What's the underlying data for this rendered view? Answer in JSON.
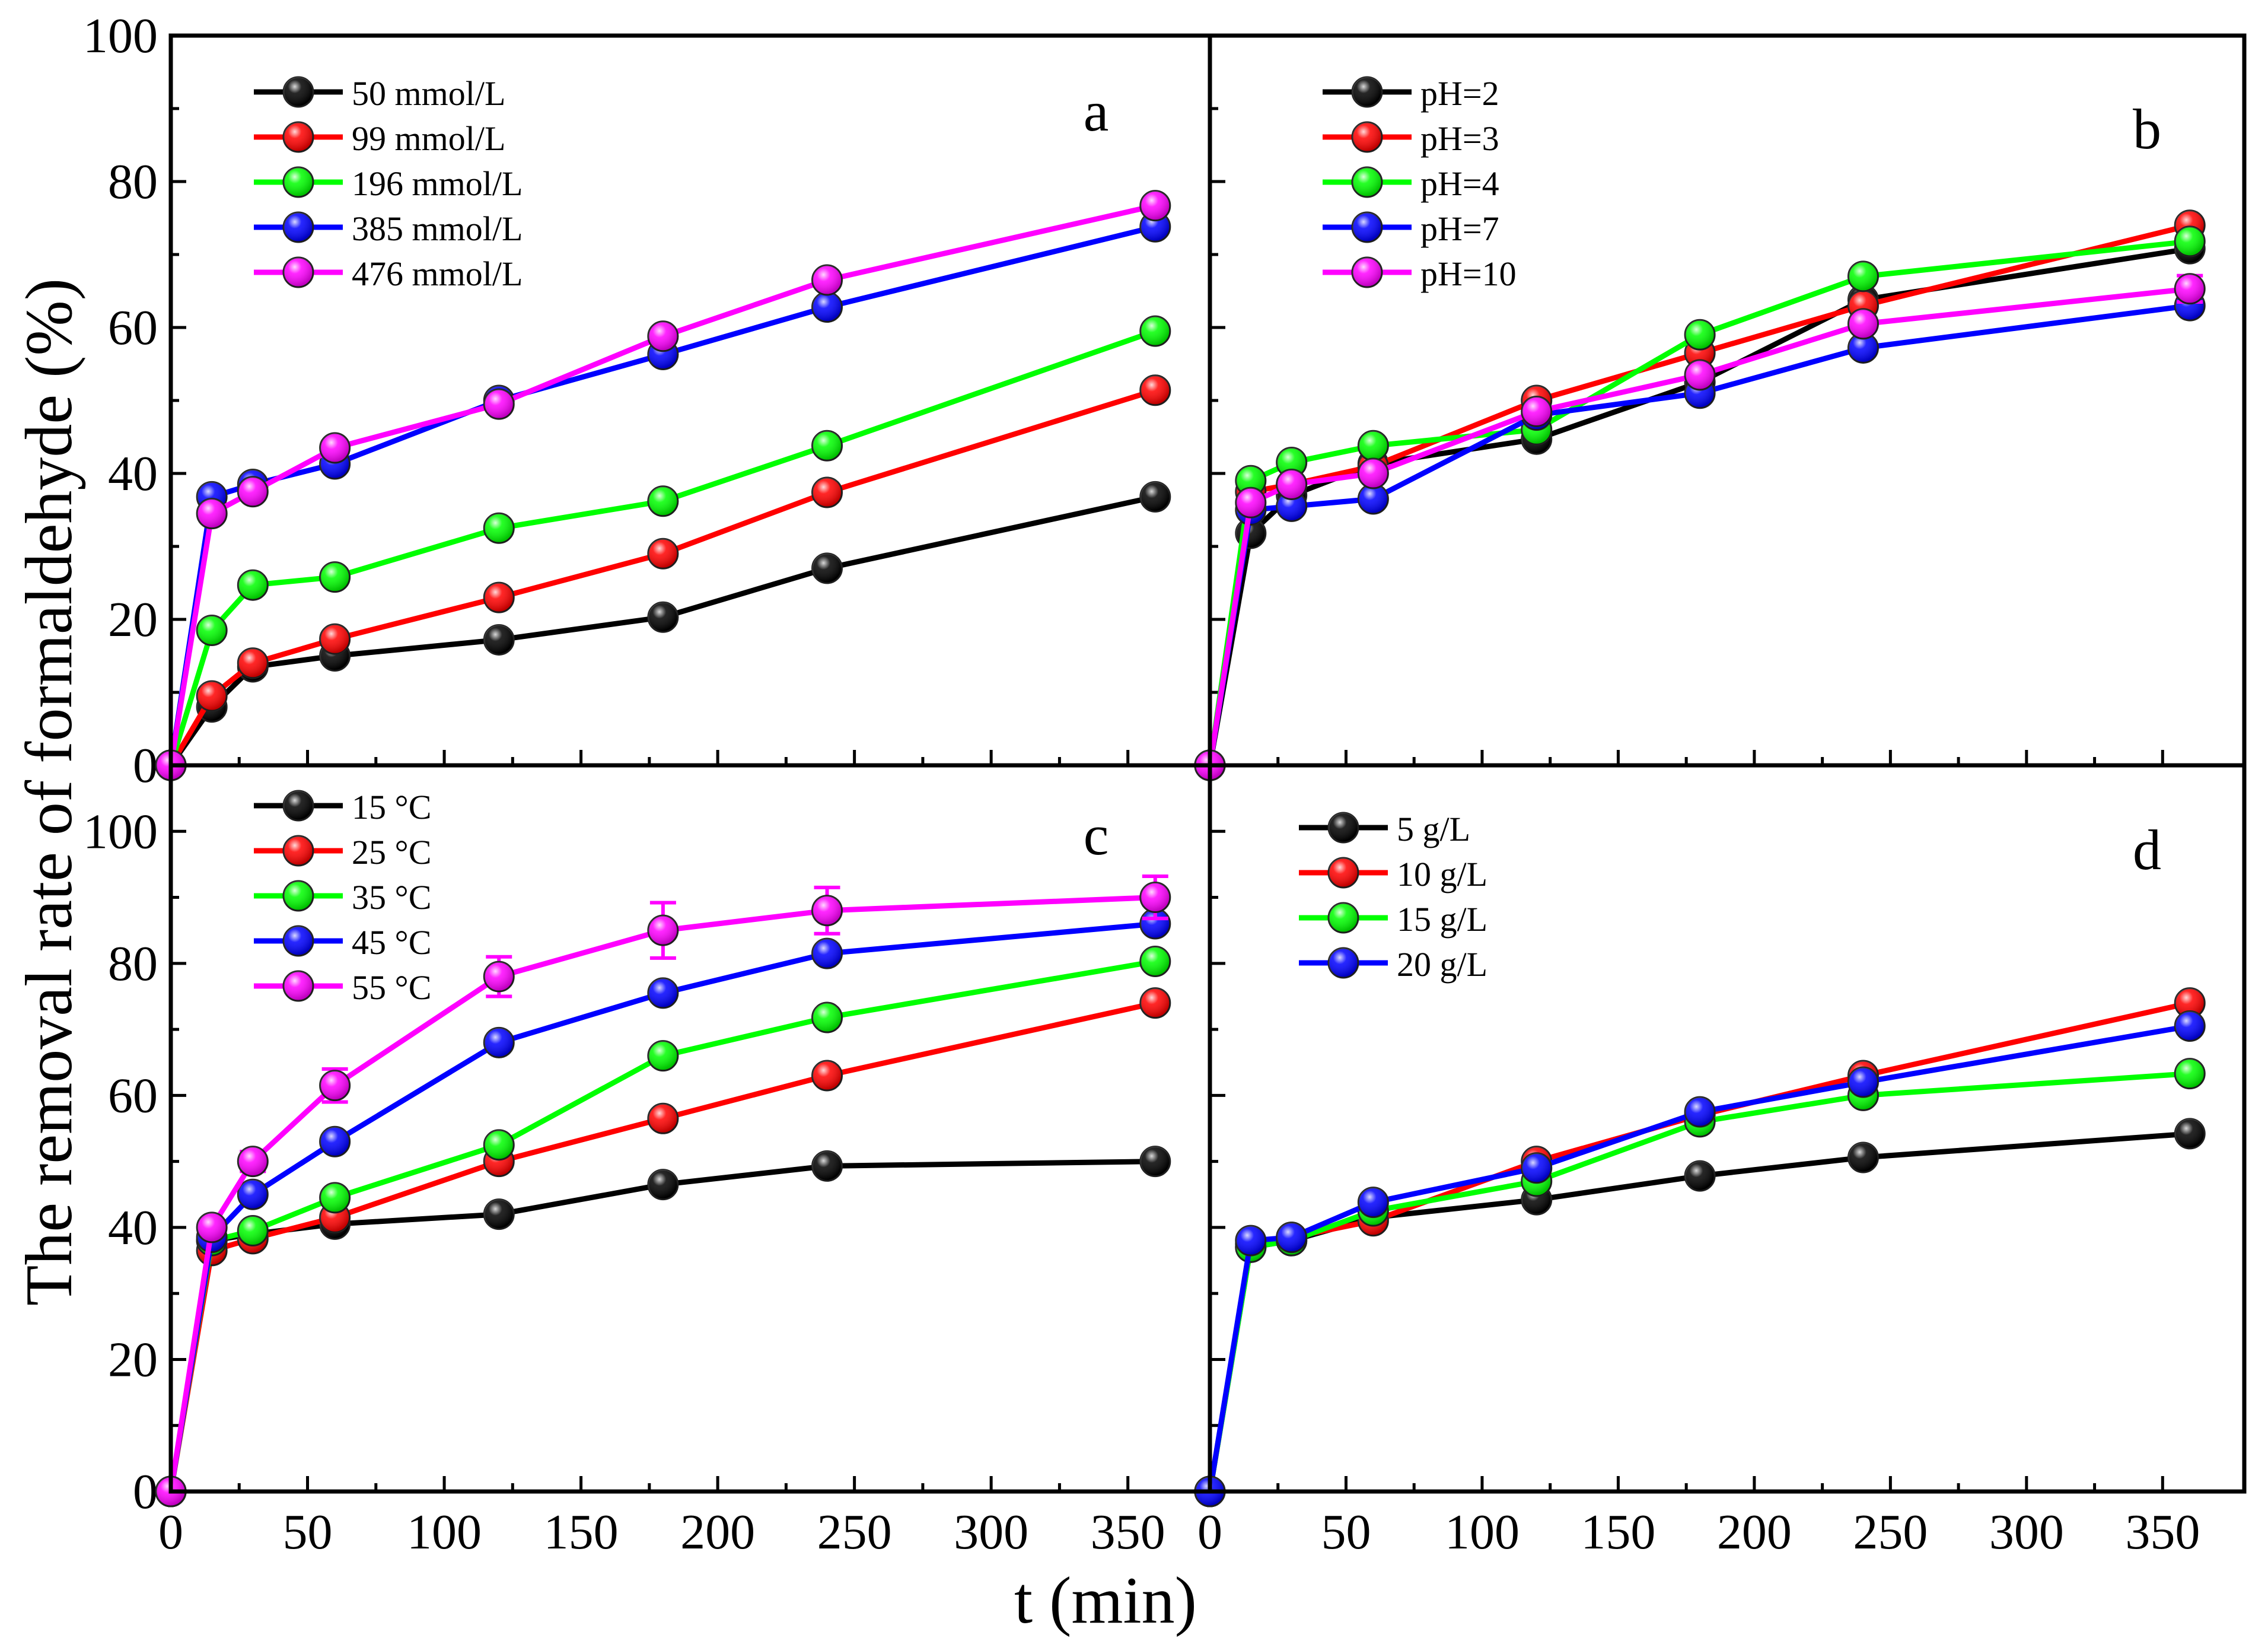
{
  "figure": {
    "ylabel": "The removal rate of formaldehyde (%)",
    "xlabel": "t (min)"
  },
  "chart_data": [
    {
      "type": "line",
      "panel_label": "a",
      "xlim": [
        0,
        380
      ],
      "ylim": [
        0,
        100
      ],
      "x_ticks": [
        0,
        50,
        100,
        150,
        200,
        250,
        300,
        350
      ],
      "y_ticks": [
        0,
        20,
        40,
        60,
        80,
        100
      ],
      "x_tick_labels": [
        "0",
        "50",
        "100",
        "150",
        "200",
        "250",
        "300",
        "350"
      ],
      "y_tick_labels": [
        "0",
        "20",
        "40",
        "60",
        "80",
        "100"
      ],
      "legend_position": "top-left",
      "x": [
        0,
        15,
        30,
        60,
        120,
        180,
        240,
        360
      ],
      "series": [
        {
          "name": "50 mmol/L",
          "color": "#000000",
          "values": [
            0,
            8,
            13.5,
            15,
            17.2,
            20.3,
            27,
            36.8
          ],
          "errors": [
            0,
            1,
            0.6,
            0.6,
            0.6,
            0.6,
            0.8,
            0.8
          ]
        },
        {
          "name": "99 mmol/L",
          "color": "#ff0000",
          "values": [
            0,
            9.5,
            14,
            17.3,
            23,
            29,
            37.4,
            51.4
          ],
          "errors": [
            0,
            1,
            0.6,
            0.6,
            0.6,
            0.6,
            0.6,
            0.6
          ]
        },
        {
          "name": "196 mmol/L",
          "color": "#00ff00",
          "values": [
            0,
            18.5,
            24.7,
            25.8,
            32.5,
            36.2,
            43.8,
            59.5
          ],
          "errors": [
            0,
            0.8,
            0.6,
            0.6,
            0.6,
            0.6,
            0.6,
            0.6
          ]
        },
        {
          "name": "385 mmol/L",
          "color": "#0000ff",
          "values": [
            0,
            36.8,
            38.5,
            41.3,
            50,
            56.3,
            62.8,
            73.8
          ],
          "errors": [
            0,
            0.6,
            0.6,
            0.6,
            0.6,
            0.6,
            0.6,
            0.6
          ]
        },
        {
          "name": "476 mmol/L",
          "color": "#ff00ff",
          "values": [
            0,
            34.5,
            37.5,
            43.5,
            49.5,
            58.8,
            66.5,
            76.7
          ],
          "errors": [
            0,
            0.6,
            0.6,
            0.6,
            0.6,
            0.8,
            0.8,
            0.8
          ]
        }
      ]
    },
    {
      "type": "line",
      "panel_label": "b",
      "xlim": [
        0,
        380
      ],
      "ylim": [
        0,
        100
      ],
      "x_ticks": [
        0,
        50,
        100,
        150,
        200,
        250,
        300,
        350
      ],
      "y_ticks": [
        0,
        20,
        40,
        60,
        80,
        100
      ],
      "legend_position": "top-left",
      "x": [
        0,
        15,
        30,
        60,
        120,
        180,
        240,
        360
      ],
      "series": [
        {
          "name": "pH=2",
          "color": "#000000",
          "values": [
            0,
            31.8,
            37,
            41.3,
            44.7,
            52.5,
            63.8,
            70.8
          ],
          "errors": [
            0,
            0.8,
            0.6,
            0.6,
            0.6,
            0.8,
            0.8,
            0.8
          ]
        },
        {
          "name": "pH=3",
          "color": "#ff0000",
          "values": [
            0,
            37.5,
            38.5,
            41,
            50,
            56.5,
            63,
            74
          ],
          "errors": [
            0,
            0.6,
            0.6,
            0.6,
            0.6,
            0.8,
            0.6,
            0.6
          ]
        },
        {
          "name": "pH=4",
          "color": "#00ff00",
          "values": [
            0,
            39,
            41.5,
            43.8,
            46,
            59,
            67,
            71.8
          ],
          "errors": [
            0,
            0.6,
            0.6,
            0.6,
            0.6,
            0.6,
            0.6,
            0.6
          ]
        },
        {
          "name": "pH=7",
          "color": "#0000ff",
          "values": [
            0,
            35,
            35.5,
            36.5,
            48,
            51,
            57.2,
            63
          ],
          "errors": [
            0,
            0.6,
            0.6,
            0.6,
            0.6,
            0.8,
            0.8,
            0.8
          ]
        },
        {
          "name": "pH=10",
          "color": "#ff00ff",
          "values": [
            0,
            36,
            38.5,
            40,
            48.5,
            53.5,
            60.5,
            65.3
          ],
          "errors": [
            0,
            0.6,
            0.6,
            0.6,
            0.6,
            0.8,
            0.8,
            1.8
          ]
        }
      ]
    },
    {
      "type": "line",
      "panel_label": "c",
      "xlim": [
        0,
        380
      ],
      "ylim": [
        0,
        110
      ],
      "x_ticks": [
        0,
        50,
        100,
        150,
        200,
        250,
        300,
        350
      ],
      "y_ticks": [
        0,
        20,
        40,
        60,
        80,
        100
      ],
      "legend_position": "top-left",
      "x": [
        0,
        15,
        30,
        60,
        120,
        180,
        240,
        360
      ],
      "series": [
        {
          "name": "15 °C",
          "color": "#000000",
          "values": [
            0,
            38,
            39,
            40.5,
            42,
            46.5,
            49.3,
            50
          ],
          "errors": [
            0,
            0.8,
            0.8,
            0.8,
            0.8,
            0.8,
            0.8,
            0.8
          ]
        },
        {
          "name": "25 °C",
          "color": "#ff0000",
          "values": [
            0,
            36.5,
            38.3,
            41.5,
            50,
            56.5,
            63,
            74
          ],
          "errors": [
            0,
            0.8,
            0.8,
            0.8,
            0.8,
            0.8,
            0.8,
            0.8
          ]
        },
        {
          "name": "35 °C",
          "color": "#00ff00",
          "values": [
            0,
            38,
            39.5,
            44.5,
            52.5,
            66,
            71.8,
            80.3
          ],
          "errors": [
            0,
            0.8,
            0.8,
            0.8,
            0.8,
            0.8,
            0.8,
            0.8
          ]
        },
        {
          "name": "45 °C",
          "color": "#0000ff",
          "values": [
            0,
            38.5,
            45,
            53,
            68,
            75.5,
            81.5,
            86
          ],
          "errors": [
            0,
            0.8,
            0.8,
            0.8,
            0.8,
            0.8,
            0.8,
            0.8
          ]
        },
        {
          "name": "55 °C",
          "color": "#ff00ff",
          "values": [
            0,
            40,
            50,
            61.5,
            78,
            85,
            88,
            90
          ],
          "errors": [
            0,
            0.8,
            1.5,
            2.5,
            3,
            4.2,
            3.5,
            3.2
          ]
        }
      ]
    },
    {
      "type": "line",
      "panel_label": "d",
      "xlim": [
        0,
        380
      ],
      "ylim": [
        0,
        110
      ],
      "x_ticks": [
        0,
        50,
        100,
        150,
        200,
        250,
        300,
        350
      ],
      "y_ticks": [
        0,
        20,
        40,
        60,
        80,
        100
      ],
      "legend_position": "top-left",
      "x": [
        0,
        15,
        30,
        60,
        120,
        180,
        240,
        360
      ],
      "series": [
        {
          "name": "5 g/L",
          "color": "#000000",
          "values": [
            0,
            37,
            38,
            41.5,
            44.2,
            47.8,
            50.6,
            54.2
          ],
          "errors": [
            0,
            0.6,
            0.6,
            0.6,
            0.6,
            0.6,
            0.6,
            0.6
          ]
        },
        {
          "name": "10 g/L",
          "color": "#ff0000",
          "values": [
            0,
            37.5,
            38.5,
            41,
            50,
            57,
            63,
            74
          ],
          "errors": [
            0,
            0.6,
            0.6,
            0.6,
            0.6,
            0.6,
            0.6,
            0.6
          ]
        },
        {
          "name": "15 g/L",
          "color": "#00ff00",
          "values": [
            0,
            37,
            38,
            42.5,
            47,
            56,
            60,
            63.3
          ],
          "errors": [
            0,
            0.6,
            0.6,
            0.6,
            0.6,
            0.6,
            0.6,
            0.6
          ]
        },
        {
          "name": "20 g/L",
          "color": "#0000ff",
          "values": [
            0,
            38,
            38.5,
            43.8,
            49,
            57.5,
            62,
            70.5
          ],
          "errors": [
            0,
            0.6,
            0.6,
            0.6,
            0.6,
            0.6,
            0.6,
            0.8
          ]
        }
      ]
    }
  ]
}
